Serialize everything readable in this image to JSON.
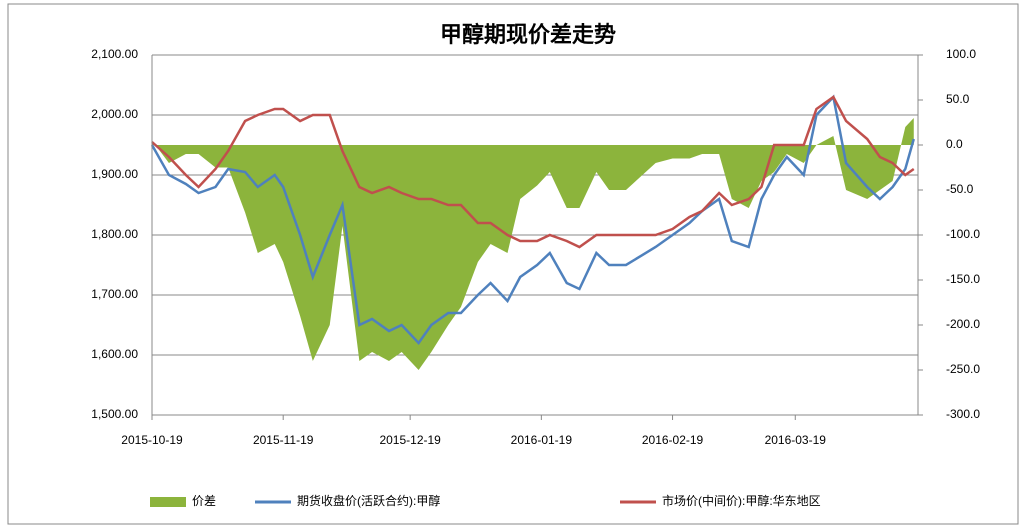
{
  "chart_data": {
    "type": "line",
    "title": "甲醇期现价差走势",
    "x": [
      "2015-10-19",
      "2015-10-23",
      "2015-10-27",
      "2015-10-30",
      "2015-11-03",
      "2015-11-06",
      "2015-11-10",
      "2015-11-13",
      "2015-11-17",
      "2015-11-19",
      "2015-11-23",
      "2015-11-26",
      "2015-11-30",
      "2015-12-03",
      "2015-12-07",
      "2015-12-10",
      "2015-12-14",
      "2015-12-17",
      "2015-12-21",
      "2015-12-24",
      "2015-12-28",
      "2015-12-31",
      "2016-01-04",
      "2016-01-07",
      "2016-01-11",
      "2016-01-14",
      "2016-01-18",
      "2016-01-21",
      "2016-01-25",
      "2016-01-28",
      "2016-02-01",
      "2016-02-04",
      "2016-02-08",
      "2016-02-15",
      "2016-02-19",
      "2016-02-23",
      "2016-02-26",
      "2016-03-01",
      "2016-03-04",
      "2016-03-08",
      "2016-03-11",
      "2016-03-14",
      "2016-03-17",
      "2016-03-21",
      "2016-03-24",
      "2016-03-28",
      "2016-03-31",
      "2016-04-05",
      "2016-04-08",
      "2016-04-11",
      "2016-04-14",
      "2016-04-16"
    ],
    "xlim": [
      "2015-10-19",
      "2016-04-17"
    ],
    "xticks": [
      "2015-10-19",
      "2015-11-19",
      "2015-12-19",
      "2016-01-19",
      "2016-02-19",
      "2016-03-19"
    ],
    "series": [
      {
        "name": "价差",
        "kind": "area",
        "axis": "y2",
        "color": "#8cb43c",
        "values": [
          5,
          -20,
          -10,
          -10,
          -25,
          -25,
          -75,
          -120,
          -110,
          -130,
          -190,
          -240,
          -200,
          -90,
          -240,
          -230,
          -240,
          -230,
          -250,
          -230,
          -200,
          -180,
          -130,
          -110,
          -120,
          -60,
          -45,
          -30,
          -70,
          -70,
          -30,
          -50,
          -50,
          -20,
          -15,
          -15,
          -10,
          -10,
          -60,
          -70,
          -40,
          -30,
          -10,
          -20,
          0,
          10,
          -50,
          -60,
          -50,
          -40,
          20,
          30
        ]
      },
      {
        "name": "期货收盘价(活跃合约):甲醇",
        "kind": "line",
        "color": "#4f81bd",
        "values": [
          1950,
          1900,
          1885,
          1870,
          1880,
          1910,
          1905,
          1880,
          1900,
          1880,
          1800,
          1730,
          1800,
          1850,
          1650,
          1660,
          1640,
          1650,
          1620,
          1650,
          1670,
          1670,
          1700,
          1720,
          1690,
          1730,
          1750,
          1770,
          1720,
          1710,
          1770,
          1750,
          1750,
          1780,
          1800,
          1820,
          1840,
          1860,
          1790,
          1780,
          1860,
          1900,
          1930,
          1900,
          2000,
          2030,
          1920,
          1880,
          1860,
          1880,
          1910,
          1960
        ]
      },
      {
        "name": "市场价(中间价):甲醇:华东地区",
        "kind": "line",
        "color": "#c0504d",
        "values": [
          1955,
          1930,
          1900,
          1880,
          1910,
          1940,
          1990,
          2000,
          2010,
          2010,
          1990,
          2000,
          2000,
          1940,
          1880,
          1870,
          1880,
          1870,
          1860,
          1860,
          1850,
          1850,
          1820,
          1820,
          1800,
          1790,
          1790,
          1800,
          1790,
          1780,
          1800,
          1800,
          1800,
          1800,
          1810,
          1830,
          1840,
          1870,
          1850,
          1860,
          1880,
          1950,
          1950,
          1950,
          2010,
          2030,
          1990,
          1960,
          1930,
          1920,
          1900,
          1910
        ]
      }
    ],
    "ylim": [
      1500,
      2100
    ],
    "yticks": [
      {
        "value": 1500,
        "label": "1,500.00"
      },
      {
        "value": 1600,
        "label": "1,600.00"
      },
      {
        "value": 1700,
        "label": "1,700.00"
      },
      {
        "value": 1800,
        "label": "1,800.00"
      },
      {
        "value": 1900,
        "label": "1,900.00"
      },
      {
        "value": 2000,
        "label": "2,000.00"
      },
      {
        "value": 2100,
        "label": "2,100.00"
      }
    ],
    "y2lim": [
      -300,
      100
    ],
    "y2ticks": [
      {
        "value": -300,
        "label": "-300.0"
      },
      {
        "value": -250,
        "label": "-250.0"
      },
      {
        "value": -200,
        "label": "-200.0"
      },
      {
        "value": -150,
        "label": "-150.0"
      },
      {
        "value": -100,
        "label": "-100.0"
      },
      {
        "value": -50,
        "label": "-50.0"
      },
      {
        "value": 0,
        "label": "0.0"
      },
      {
        "value": 50,
        "label": "50.0"
      },
      {
        "value": 100,
        "label": "100.0"
      }
    ],
    "grid": true,
    "legend": "bottom"
  }
}
